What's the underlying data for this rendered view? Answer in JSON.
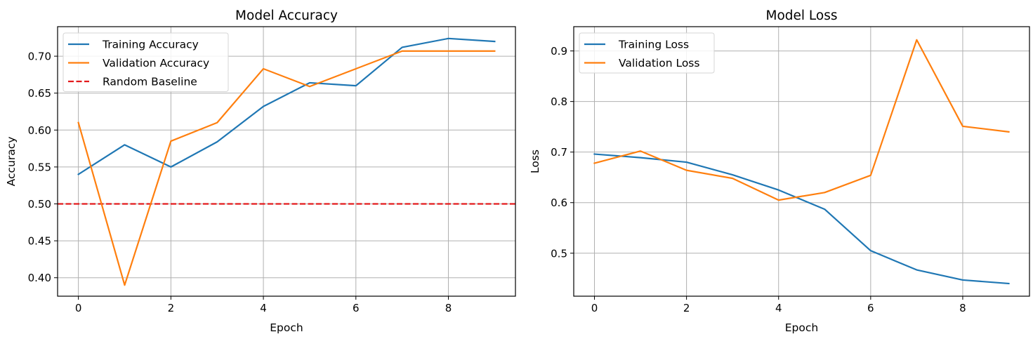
{
  "chart_data": [
    {
      "type": "line",
      "title": "Model Accuracy",
      "xlabel": "Epoch",
      "ylabel": "Accuracy",
      "x": [
        0,
        1,
        2,
        3,
        4,
        5,
        6,
        7,
        8,
        9
      ],
      "xlim": [
        -0.45,
        9.45
      ],
      "ylim": [
        0.375,
        0.74
      ],
      "xticks": [
        0,
        2,
        4,
        6,
        8
      ],
      "yticks": [
        0.4,
        0.45,
        0.5,
        0.55,
        0.6,
        0.65,
        0.7
      ],
      "ytick_decimals": 2,
      "grid": true,
      "legend": "upper-left",
      "series": [
        {
          "name": "Training Accuracy",
          "color": "#1f77b4",
          "style": "solid",
          "values": [
            0.54,
            0.58,
            0.55,
            0.584,
            0.632,
            0.664,
            0.66,
            0.712,
            0.724,
            0.72
          ]
        },
        {
          "name": "Validation Accuracy",
          "color": "#ff7f0e",
          "style": "solid",
          "values": [
            0.61,
            0.39,
            0.585,
            0.61,
            0.683,
            0.659,
            0.683,
            0.707,
            0.707,
            0.707
          ]
        }
      ],
      "baselines": [
        {
          "name": "Random Baseline",
          "color": "#e31a1c",
          "style": "dashed",
          "value": 0.5
        }
      ]
    },
    {
      "type": "line",
      "title": "Model Loss",
      "xlabel": "Epoch",
      "ylabel": "Loss",
      "x": [
        0,
        1,
        2,
        3,
        4,
        5,
        6,
        7,
        8,
        9
      ],
      "xlim": [
        -0.45,
        9.45
      ],
      "ylim": [
        0.415,
        0.948
      ],
      "xticks": [
        0,
        2,
        4,
        6,
        8
      ],
      "yticks": [
        0.5,
        0.6,
        0.7,
        0.8,
        0.9
      ],
      "ytick_decimals": 1,
      "grid": true,
      "legend": "upper-left",
      "series": [
        {
          "name": "Training Loss",
          "color": "#1f77b4",
          "style": "solid",
          "values": [
            0.696,
            0.689,
            0.68,
            0.655,
            0.625,
            0.587,
            0.505,
            0.467,
            0.447,
            0.44
          ]
        },
        {
          "name": "Validation Loss",
          "color": "#ff7f0e",
          "style": "solid",
          "values": [
            0.678,
            0.702,
            0.664,
            0.648,
            0.605,
            0.62,
            0.654,
            0.922,
            0.751,
            0.74
          ]
        }
      ],
      "baselines": []
    }
  ]
}
